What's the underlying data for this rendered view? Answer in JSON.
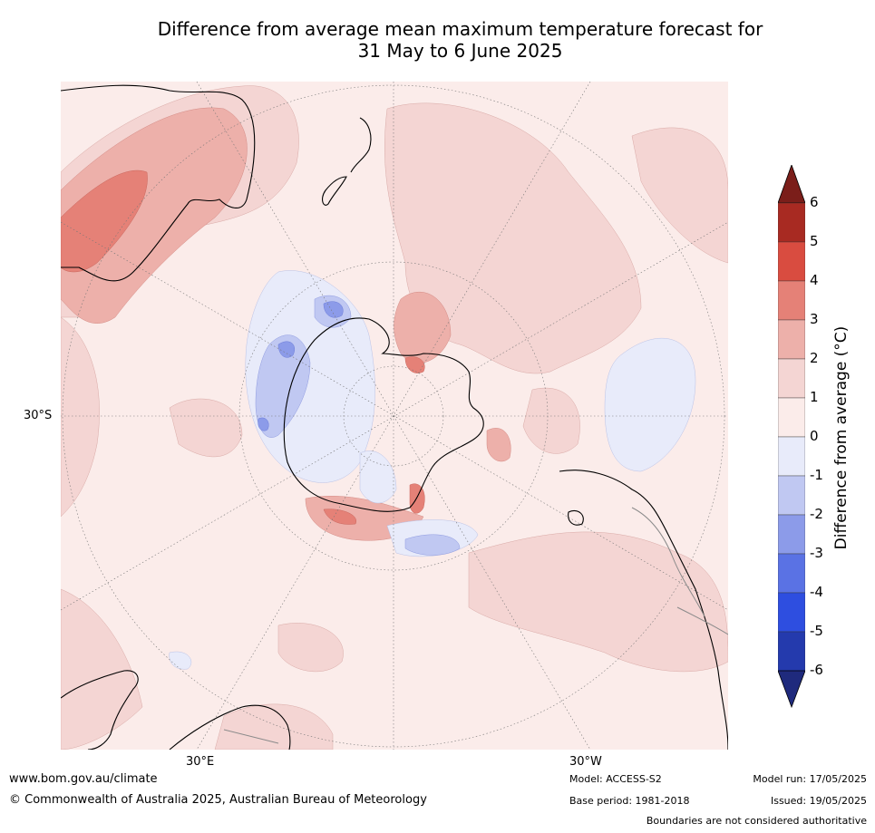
{
  "title": {
    "line1": "Difference from average mean maximum temperature forecast for",
    "line2": "31 May to 6 June 2025"
  },
  "map": {
    "lat_label": "30°S",
    "lon_labels": [
      "30°E",
      "30°W"
    ]
  },
  "colorbar": {
    "title": "Difference from average (°C)",
    "ticks": [
      "6",
      "5",
      "4",
      "3",
      "2",
      "1",
      "0",
      "-1",
      "-2",
      "-3",
      "-4",
      "-5",
      "-6"
    ],
    "colors": {
      "over": "#7b1e1a",
      "b6_5": "#a82a22",
      "b5_4": "#d94c40",
      "b4_3": "#e58177",
      "b3_2": "#edb0aa",
      "b2_1": "#f4d5d3",
      "b1_0": "#fbecea",
      "b0_m1": "#e8ebfa",
      "bm1_m2": "#c0c8f2",
      "bm2_m3": "#8c9be9",
      "bm3_m4": "#5a72e4",
      "bm4_m5": "#2e4ee0",
      "bm5_m6": "#243aad",
      "under": "#1f2a7d"
    }
  },
  "footer": {
    "website": "www.bom.gov.au/climate",
    "copyright": "© Commonwealth of Australia 2025, Australian Bureau of Meteorology",
    "model": "Model: ACCESS-S2",
    "base_period": "Base period: 1981-2018",
    "model_run": "Model run: 17/05/2025",
    "issued": "Issued: 19/05/2025",
    "disclaimer": "Boundaries are not considered authoritative"
  }
}
